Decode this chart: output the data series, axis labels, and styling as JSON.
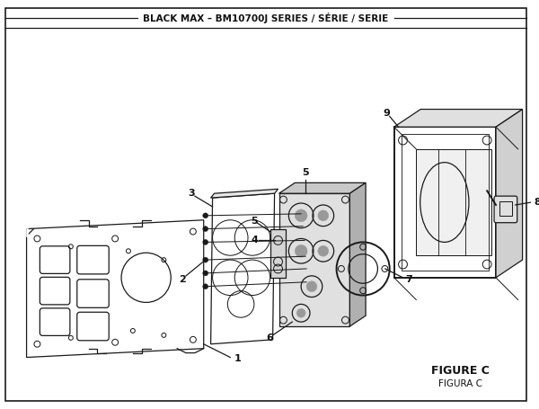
{
  "title": "BLACK MAX – BM10700J SERIES / SÉRIE / SERIE",
  "figure_label": "FIGURE C",
  "figura_label": "FIGURA C",
  "bg_color": "#ffffff",
  "line_color": "#1a1a1a",
  "lw": 0.9
}
